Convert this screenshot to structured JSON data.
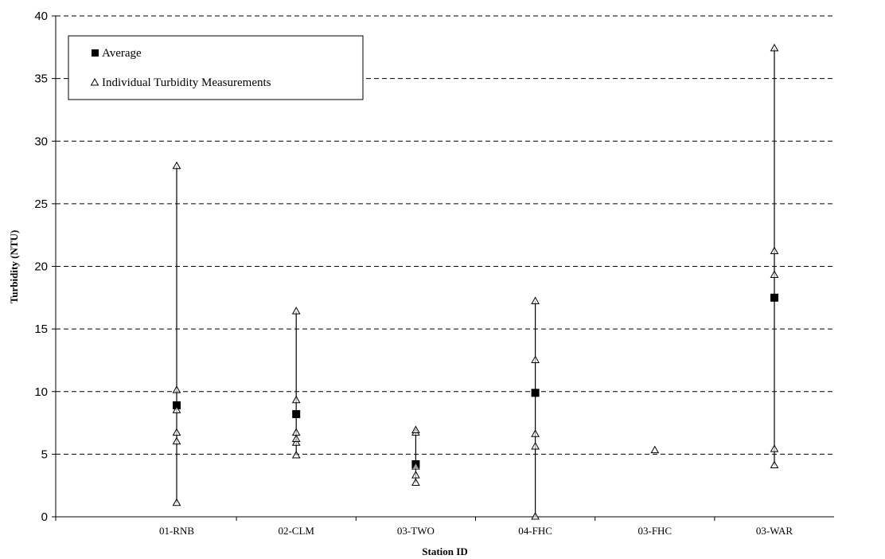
{
  "chart_data": {
    "type": "scatter",
    "title": "",
    "xlabel": "Station ID",
    "ylabel": "Turbidity (NTU)",
    "ylim": [
      0,
      40
    ],
    "yticks": [
      0,
      5,
      10,
      15,
      20,
      25,
      30,
      35,
      40
    ],
    "grid": "horizontal-dashed",
    "legend_position": "top-left",
    "categories": [
      "01-RNB",
      "02-CLM",
      "03-TWO",
      "04-FHC",
      "03-FHC",
      "03-WAR"
    ],
    "series": [
      {
        "name": "Average",
        "marker": "filled-square",
        "values": [
          8.9,
          8.2,
          4.2,
          9.9,
          null,
          17.5
        ]
      },
      {
        "name": "Individual Turbidity Measurements",
        "marker": "open-triangle",
        "values": [
          [
            1.1,
            6.0,
            6.7,
            8.5,
            10.1,
            28.0
          ],
          [
            4.9,
            5.9,
            6.2,
            6.7,
            9.3,
            16.4
          ],
          [
            2.7,
            3.3,
            4.0,
            6.7,
            6.9
          ],
          [
            0.0,
            5.6,
            6.6,
            12.5,
            17.2
          ],
          [
            5.3
          ],
          [
            4.1,
            5.4,
            19.3,
            21.2,
            37.4
          ]
        ]
      }
    ]
  }
}
